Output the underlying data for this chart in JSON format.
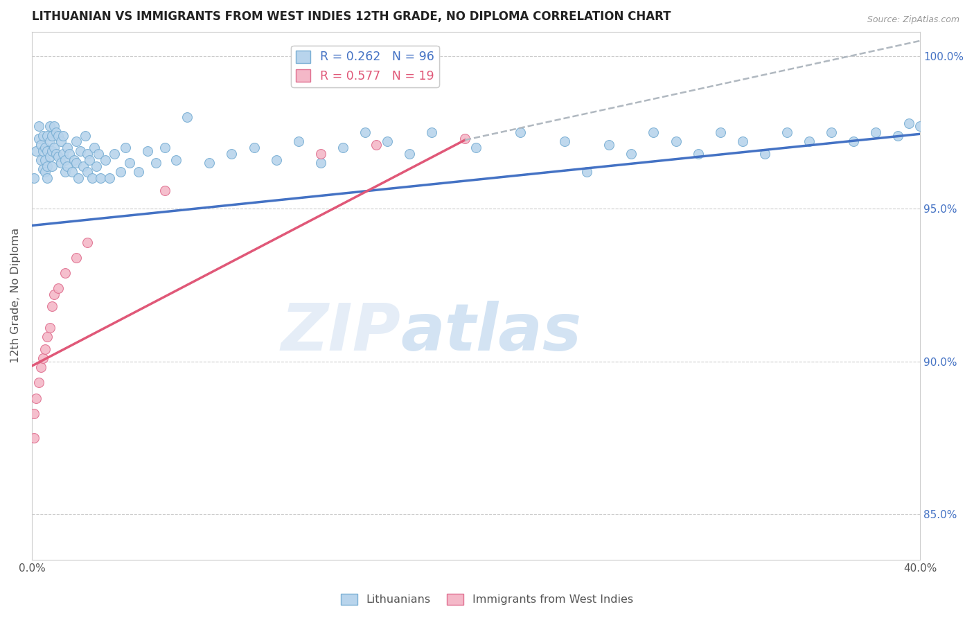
{
  "title": "LITHUANIAN VS IMMIGRANTS FROM WEST INDIES 12TH GRADE, NO DIPLOMA CORRELATION CHART",
  "source": "Source: ZipAtlas.com",
  "ylabel": "12th Grade, No Diploma",
  "xmin": 0.0,
  "xmax": 0.4,
  "ymin": 0.835,
  "ymax": 1.008,
  "xtick_positions": [
    0.0,
    0.05,
    0.1,
    0.15,
    0.2,
    0.25,
    0.3,
    0.35,
    0.4
  ],
  "xtick_labels": [
    "0.0%",
    "",
    "",
    "",
    "",
    "",
    "",
    "",
    "40.0%"
  ],
  "ytick_positions": [
    0.85,
    0.9,
    0.95,
    1.0
  ],
  "ytick_labels": [
    "85.0%",
    "90.0%",
    "95.0%",
    "100.0%"
  ],
  "blue_color": "#b8d4ec",
  "blue_edge": "#7aafd4",
  "pink_color": "#f4b8c8",
  "pink_edge": "#e07090",
  "blue_line_color": "#4472c4",
  "pink_line_color": "#e05878",
  "dash_line_color": "#b0b8c0",
  "legend_blue_label": "R = 0.262   N = 96",
  "legend_pink_label": "R = 0.577   N = 19",
  "legend_bottom_blue": "Lithuanians",
  "legend_bottom_pink": "Immigrants from West Indies",
  "blue_scatter_x": [
    0.001,
    0.002,
    0.003,
    0.003,
    0.004,
    0.004,
    0.005,
    0.005,
    0.005,
    0.006,
    0.006,
    0.006,
    0.007,
    0.007,
    0.007,
    0.007,
    0.008,
    0.008,
    0.008,
    0.009,
    0.009,
    0.009,
    0.01,
    0.01,
    0.011,
    0.011,
    0.012,
    0.012,
    0.013,
    0.013,
    0.014,
    0.014,
    0.015,
    0.015,
    0.016,
    0.016,
    0.017,
    0.018,
    0.019,
    0.02,
    0.02,
    0.021,
    0.022,
    0.023,
    0.024,
    0.025,
    0.025,
    0.026,
    0.027,
    0.028,
    0.029,
    0.03,
    0.031,
    0.033,
    0.035,
    0.037,
    0.04,
    0.042,
    0.044,
    0.048,
    0.052,
    0.056,
    0.06,
    0.065,
    0.07,
    0.08,
    0.09,
    0.1,
    0.11,
    0.12,
    0.13,
    0.14,
    0.15,
    0.16,
    0.17,
    0.18,
    0.2,
    0.22,
    0.24,
    0.25,
    0.26,
    0.27,
    0.28,
    0.29,
    0.3,
    0.31,
    0.32,
    0.33,
    0.34,
    0.35,
    0.36,
    0.37,
    0.38,
    0.39,
    0.395,
    0.4
  ],
  "blue_scatter_y": [
    0.96,
    0.969,
    0.973,
    0.977,
    0.971,
    0.966,
    0.969,
    0.974,
    0.963,
    0.97,
    0.966,
    0.962,
    0.974,
    0.969,
    0.964,
    0.96,
    0.977,
    0.972,
    0.967,
    0.974,
    0.969,
    0.964,
    0.977,
    0.97,
    0.975,
    0.968,
    0.974,
    0.967,
    0.972,
    0.965,
    0.974,
    0.968,
    0.966,
    0.962,
    0.97,
    0.964,
    0.968,
    0.962,
    0.966,
    0.972,
    0.965,
    0.96,
    0.969,
    0.964,
    0.974,
    0.968,
    0.962,
    0.966,
    0.96,
    0.97,
    0.964,
    0.968,
    0.96,
    0.966,
    0.96,
    0.968,
    0.962,
    0.97,
    0.965,
    0.962,
    0.969,
    0.965,
    0.97,
    0.966,
    0.98,
    0.965,
    0.968,
    0.97,
    0.966,
    0.972,
    0.965,
    0.97,
    0.975,
    0.972,
    0.968,
    0.975,
    0.97,
    0.975,
    0.972,
    0.962,
    0.971,
    0.968,
    0.975,
    0.972,
    0.968,
    0.975,
    0.972,
    0.968,
    0.975,
    0.972,
    0.975,
    0.972,
    0.975,
    0.974,
    0.978,
    0.977
  ],
  "pink_scatter_x": [
    0.001,
    0.001,
    0.002,
    0.003,
    0.004,
    0.005,
    0.006,
    0.007,
    0.008,
    0.009,
    0.01,
    0.012,
    0.015,
    0.02,
    0.025,
    0.06,
    0.13,
    0.155,
    0.195
  ],
  "pink_scatter_y": [
    0.875,
    0.883,
    0.888,
    0.893,
    0.898,
    0.901,
    0.904,
    0.908,
    0.911,
    0.918,
    0.922,
    0.924,
    0.929,
    0.934,
    0.939,
    0.956,
    0.968,
    0.971,
    0.973
  ],
  "blue_trend_x0": 0.0,
  "blue_trend_y0": 0.9445,
  "blue_trend_x1": 0.4,
  "blue_trend_y1": 0.9745,
  "pink_trend_x0": 0.0,
  "pink_trend_y0": 0.8985,
  "pink_trend_x1": 0.195,
  "pink_trend_y1": 0.9725,
  "dash_trend_x0": 0.195,
  "dash_trend_y0": 0.9725,
  "dash_trend_x1": 0.4,
  "dash_trend_y1": 1.005,
  "watermark_zip": "ZIP",
  "watermark_atlas": "atlas"
}
